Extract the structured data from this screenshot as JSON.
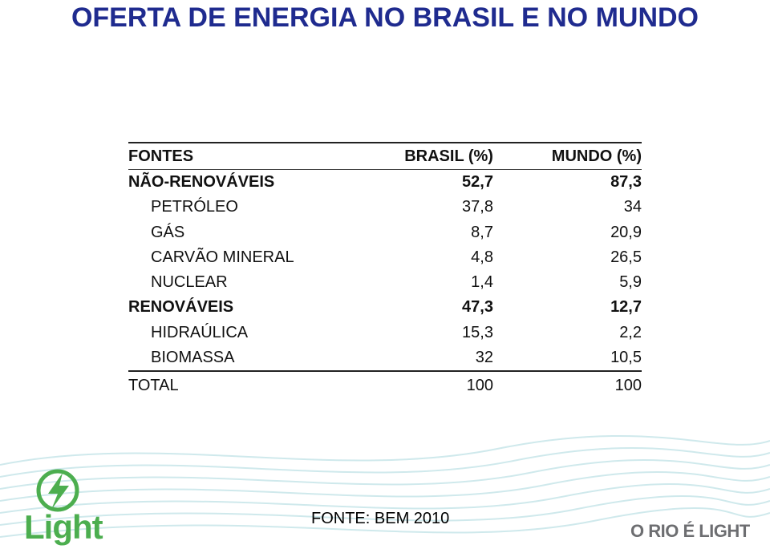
{
  "header": {
    "title": "OFERTA DE ENERGIA NO BRASIL E NO MUNDO"
  },
  "table": {
    "columns": [
      "FONTES",
      "BRASIL (%)",
      "MUNDO (%)"
    ],
    "rows": [
      [
        "NÃO-RENOVÁVEIS",
        "52,7",
        "87,3"
      ],
      [
        "PETRÓLEO",
        "37,8",
        "34"
      ],
      [
        "GÁS",
        "8,7",
        "20,9"
      ],
      [
        "CARVÃO MINERAL",
        "4,8",
        "26,5"
      ],
      [
        "NUCLEAR",
        "1,4",
        "5,9"
      ],
      [
        "RENOVÁVEIS",
        "47,3",
        "12,7"
      ],
      [
        "HIDRAÚLICA",
        "15,3",
        "2,2"
      ],
      [
        "BIOMASSA",
        "32",
        "10,5"
      ],
      [
        "TOTAL",
        "100",
        "100"
      ]
    ]
  },
  "logo": {
    "text": "Light"
  },
  "footer": {
    "source": "FONTE: BEM 2010",
    "slogan": "O RIO É LIGHT"
  }
}
